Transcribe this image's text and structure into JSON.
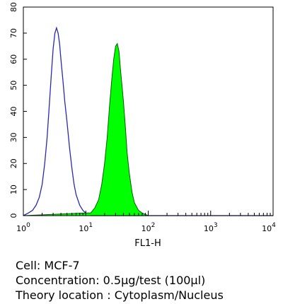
{
  "chart_data": {
    "type": "histogram",
    "xlabel": "FL1-H",
    "ylabel": "",
    "x_scale": "log",
    "xlim": [
      1,
      10000
    ],
    "ylim": [
      0,
      80
    ],
    "grid": false,
    "x_ticks": [
      "10^0",
      "10^1",
      "10^2",
      "10^3",
      "10^4"
    ],
    "y_ticks": [
      0,
      10,
      20,
      30,
      40,
      50,
      60,
      70,
      80
    ],
    "series": [
      {
        "style": "outline",
        "color": "#2a2ab0",
        "points": [
          [
            1.0,
            0
          ],
          [
            1.2,
            1
          ],
          [
            1.4,
            2
          ],
          [
            1.6,
            4
          ],
          [
            1.8,
            7
          ],
          [
            2.0,
            12
          ],
          [
            2.2,
            20
          ],
          [
            2.4,
            30
          ],
          [
            2.6,
            42
          ],
          [
            2.8,
            54
          ],
          [
            3.0,
            64
          ],
          [
            3.2,
            70
          ],
          [
            3.4,
            72
          ],
          [
            3.6,
            70
          ],
          [
            3.8,
            66
          ],
          [
            4.0,
            60
          ],
          [
            4.3,
            52
          ],
          [
            4.6,
            44
          ],
          [
            5.0,
            36
          ],
          [
            5.5,
            26
          ],
          [
            6.0,
            18
          ],
          [
            6.5,
            12
          ],
          [
            7.0,
            8
          ],
          [
            8.0,
            4
          ],
          [
            9.0,
            2
          ],
          [
            10.0,
            1
          ],
          [
            11.0,
            0.5
          ],
          [
            12.0,
            0
          ],
          [
            100,
            0
          ],
          [
            10000,
            0
          ]
        ]
      },
      {
        "style": "filled",
        "color": "#00ff00",
        "points": [
          [
            1.0,
            0
          ],
          [
            10.0,
            1
          ],
          [
            12.0,
            1
          ],
          [
            14.0,
            3
          ],
          [
            16.0,
            6
          ],
          [
            18.0,
            12
          ],
          [
            20.0,
            20
          ],
          [
            22.0,
            30
          ],
          [
            24.0,
            42
          ],
          [
            26.0,
            52
          ],
          [
            28.0,
            60
          ],
          [
            30.0,
            65
          ],
          [
            32.0,
            66
          ],
          [
            34.0,
            63
          ],
          [
            36.0,
            56
          ],
          [
            38.0,
            50
          ],
          [
            40.0,
            44
          ],
          [
            43.0,
            34
          ],
          [
            46.0,
            24
          ],
          [
            50.0,
            16
          ],
          [
            55.0,
            9
          ],
          [
            60.0,
            5
          ],
          [
            70.0,
            2
          ],
          [
            80.0,
            1
          ],
          [
            100.0,
            0
          ],
          [
            10000,
            0
          ]
        ]
      }
    ]
  },
  "caption": [
    "Cell: MCF-7",
    "Concentration: 0.5µg/test (100µl)",
    "Theory location : Cytoplasm/Nucleus"
  ]
}
